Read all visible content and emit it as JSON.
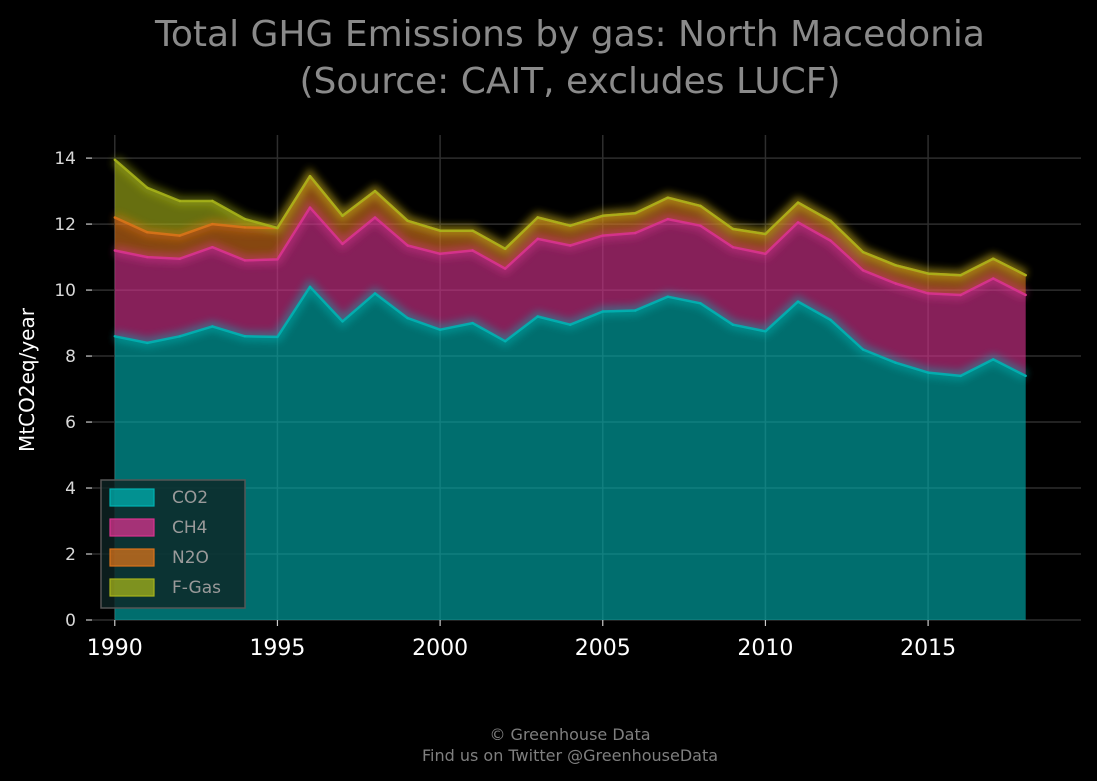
{
  "chart_data": {
    "type": "area",
    "stacked": true,
    "title_line1": "Total GHG Emissions by gas: North Macedonia",
    "title_line2": "(Source: CAIT, excludes LUCF)",
    "xlabel": "",
    "ylabel": "MtCO2eq/year",
    "xlim": [
      1989.3,
      2019.7
    ],
    "ylim": [
      0,
      14.7
    ],
    "x_ticks": [
      1990,
      1995,
      2000,
      2005,
      2010,
      2015
    ],
    "y_ticks": [
      0,
      2,
      4,
      6,
      8,
      10,
      12,
      14
    ],
    "grid": true,
    "legend_position": "bottom-left",
    "x": [
      1990,
      1991,
      1992,
      1993,
      1994,
      1995,
      1996,
      1997,
      1998,
      1999,
      2000,
      2001,
      2002,
      2003,
      2004,
      2005,
      2006,
      2007,
      2008,
      2009,
      2010,
      2011,
      2012,
      2013,
      2014,
      2015,
      2016,
      2017,
      2018
    ],
    "series": [
      {
        "name": "CO2",
        "color": "#00b2b2",
        "values": [
          8.6,
          8.4,
          8.6,
          8.9,
          8.6,
          8.58,
          10.1,
          9.05,
          9.9,
          9.15,
          8.8,
          9.0,
          8.45,
          9.2,
          8.95,
          9.35,
          9.38,
          9.8,
          9.6,
          8.95,
          8.75,
          9.65,
          9.1,
          8.2,
          7.8,
          7.5,
          7.4,
          7.9,
          7.4
        ]
      },
      {
        "name": "CH4",
        "color": "#d9338f",
        "values": [
          2.6,
          2.6,
          2.35,
          2.4,
          2.3,
          2.35,
          2.4,
          2.35,
          2.3,
          2.2,
          2.3,
          2.2,
          2.2,
          2.35,
          2.4,
          2.3,
          2.35,
          2.35,
          2.35,
          2.35,
          2.35,
          2.4,
          2.4,
          2.4,
          2.4,
          2.4,
          2.45,
          2.45,
          2.45
        ]
      },
      {
        "name": "N2O",
        "color": "#d9731a",
        "values": [
          1.0,
          0.75,
          0.7,
          0.7,
          1.0,
          0.95,
          0.95,
          0.85,
          0.8,
          0.75,
          0.7,
          0.6,
          0.6,
          0.65,
          0.6,
          0.6,
          0.6,
          0.65,
          0.6,
          0.55,
          0.6,
          0.6,
          0.6,
          0.55,
          0.55,
          0.6,
          0.6,
          0.6,
          0.6
        ]
      },
      {
        "name": "F-Gas",
        "color": "#a6b31a",
        "values": [
          1.75,
          1.35,
          1.05,
          0.7,
          0.25,
          0.0,
          0.0,
          0.0,
          0.0,
          0.0,
          0.0,
          0.0,
          0.0,
          0.0,
          0.0,
          0.0,
          0.0,
          0.0,
          0.0,
          0.0,
          0.0,
          0.0,
          0.0,
          0.0,
          0.0,
          0.0,
          0.0,
          0.0,
          0.0
        ]
      }
    ]
  },
  "footer": {
    "line1": "© Greenhouse Data",
    "line2": "Find us on Twitter @GreenhouseData"
  },
  "colors": {
    "background": "#000000",
    "grid": "#2e2e2e"
  }
}
